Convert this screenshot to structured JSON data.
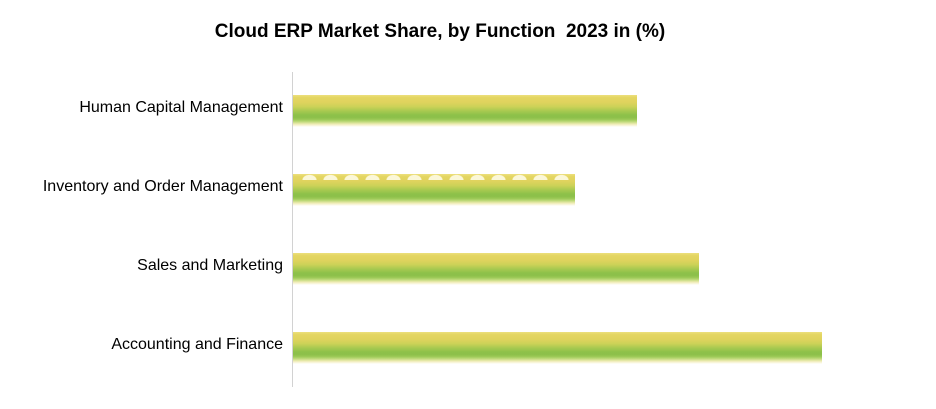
{
  "chart_data": {
    "type": "bar",
    "orientation": "horizontal",
    "title": "Cloud ERP Market Share, by Function  2023 in (%)",
    "categories": [
      "Human Capital Management",
      "Inventory and Order Management",
      "Sales and Marketing",
      "Accounting and Finance"
    ],
    "values": [
      19.5,
      16,
      23,
      30
    ],
    "values_estimated": true,
    "xlabel": "",
    "ylabel": "",
    "xlim": [
      0,
      33
    ],
    "grid": false,
    "legend": false,
    "data_labels": false,
    "bar_order": "top-to-bottom"
  },
  "colors": {
    "background": "#ffffff",
    "title_text": "#000000",
    "label_text": "#000000",
    "axis_line": "#d2d2d2",
    "bar_yellow_top": "#e4d662",
    "bar_green_mid": "#8cc04a",
    "bar_glow_bottom": "#f5f0c6"
  }
}
